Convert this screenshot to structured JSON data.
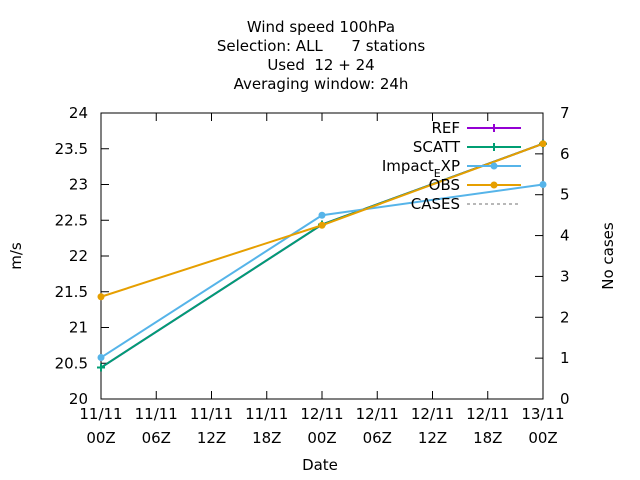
{
  "chart_data": {
    "type": "line",
    "title_lines": [
      "Wind speed 100hPa",
      "Selection: ALL      7 stations",
      "Used  12 + 24",
      "Averaging window: 24h"
    ],
    "xlabel": "Date",
    "ylabel": "m/s",
    "y2label": "No cases",
    "x_ticks": [
      "11/11\n00Z",
      "11/11\n06Z",
      "11/11\n12Z",
      "11/11\n18Z",
      "12/11\n00Z",
      "12/11\n06Z",
      "12/11\n12Z",
      "12/11\n18Z",
      "13/11\n00Z"
    ],
    "x_tick_hours": [
      0,
      6,
      12,
      18,
      24,
      30,
      36,
      42,
      48
    ],
    "ylim": [
      20,
      24
    ],
    "y_ticks": [
      "20",
      "20.5",
      "21",
      "21.5",
      "22",
      "22.5",
      "23",
      "23.5",
      "24"
    ],
    "y2lim": [
      0,
      7
    ],
    "y2_ticks": [
      "0",
      "1",
      "2",
      "3",
      "4",
      "5",
      "6",
      "7"
    ],
    "grid": false,
    "legend_position": "top-right",
    "series": [
      {
        "name": "REF",
        "color": "#9400d3",
        "x_hours": [
          0,
          24,
          48
        ],
        "values": [
          20.44,
          22.44,
          23.57
        ],
        "marker": "plus"
      },
      {
        "name": "SCATT",
        "color": "#009e73",
        "x_hours": [
          0,
          24,
          48
        ],
        "values": [
          20.44,
          22.44,
          23.57
        ],
        "marker": "plus"
      },
      {
        "name": "Impact_EXP",
        "display_name": "Impact",
        "display_sub": "E",
        "display_tail": "XP",
        "color": "#56b4e9",
        "x_hours": [
          0,
          24,
          48
        ],
        "values": [
          20.58,
          22.57,
          23.0
        ],
        "marker": "dot"
      },
      {
        "name": "OBS",
        "color": "#e69f00",
        "x_hours": [
          0,
          24,
          48
        ],
        "values": [
          21.43,
          22.43,
          23.57
        ],
        "marker": "dot"
      },
      {
        "name": "CASES",
        "color": "#a0a0a0",
        "dashed": true,
        "x_hours": [],
        "values": [],
        "marker": "none"
      }
    ]
  }
}
